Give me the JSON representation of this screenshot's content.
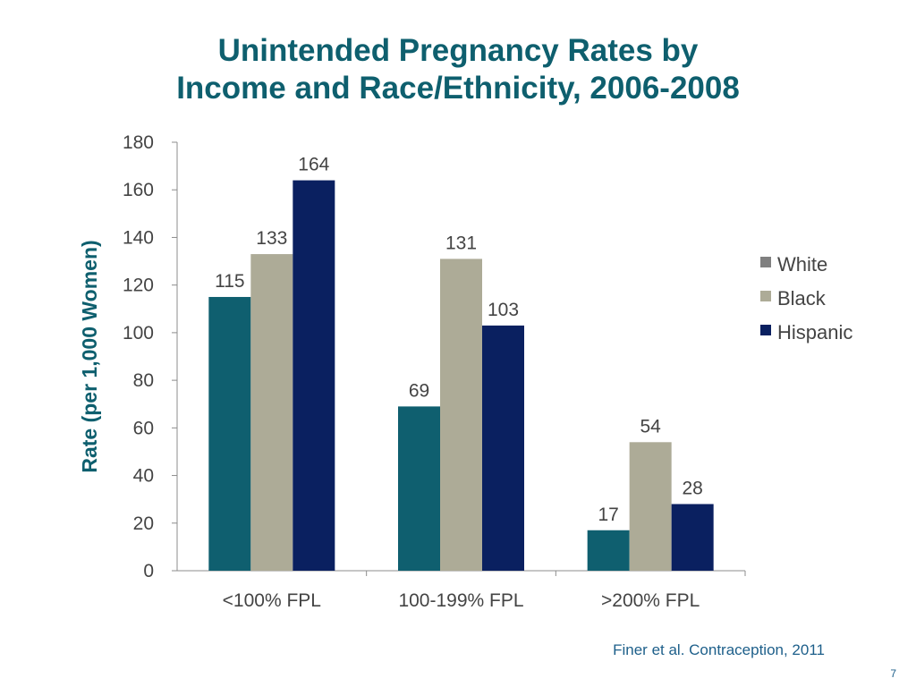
{
  "slide": {
    "title_line1": "Unintended Pregnancy Rates by",
    "title_line2": "Income and Race/Ethnicity, 2006-2008",
    "citation": "Finer et al. Contraception, 2011",
    "page_number": "7"
  },
  "chart_data": {
    "type": "bar",
    "title": "",
    "xlabel": "",
    "ylabel": "Rate (per 1,000 Women)",
    "categories": [
      "<100% FPL",
      "100-199% FPL",
      ">200% FPL"
    ],
    "series": [
      {
        "name": "White",
        "color": "#0f5f6f",
        "legend_color": "#808080",
        "values": [
          115,
          69,
          17
        ]
      },
      {
        "name": "Black",
        "color": "#adab97",
        "legend_color": "#adab97",
        "values": [
          133,
          131,
          54
        ]
      },
      {
        "name": "Hispanic",
        "color": "#0a2060",
        "legend_color": "#0a2060",
        "values": [
          164,
          103,
          28
        ]
      }
    ],
    "ylim": [
      0,
      180
    ],
    "yticks": [
      0,
      20,
      40,
      60,
      80,
      100,
      120,
      140,
      160,
      180
    ],
    "grid": false,
    "legend_position": "right",
    "data_labels": true,
    "axis_text_color": "#444444",
    "ylabel_color": "#0e5f6e"
  }
}
